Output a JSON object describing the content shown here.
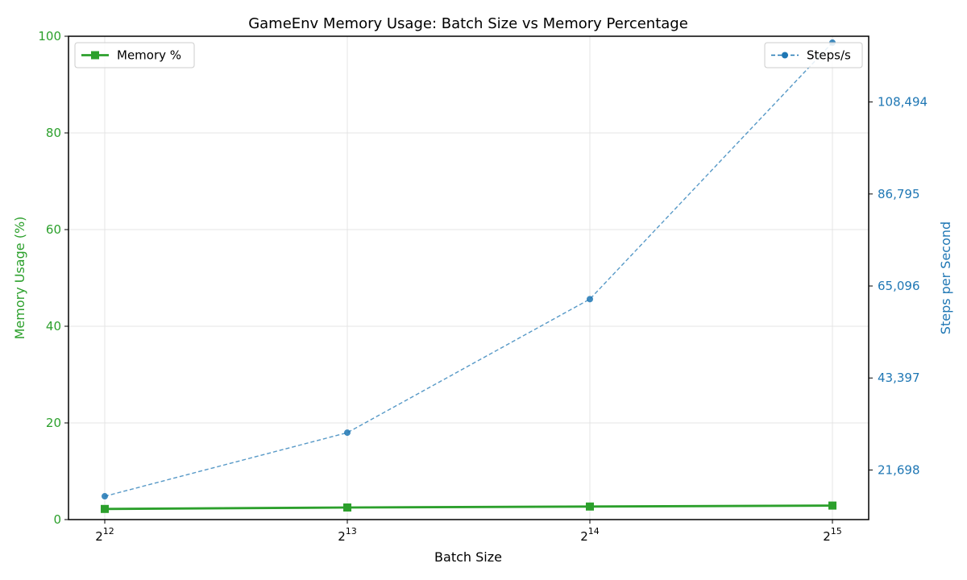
{
  "chart_data": {
    "type": "line",
    "title": "GameEnv Memory Usage: Batch Size vs Memory Percentage",
    "xlabel": "Batch Size",
    "x_scale": "log2",
    "x": [
      4096,
      8192,
      16384,
      32768
    ],
    "x_tick_labels": [
      {
        "base": "2",
        "exp": "12"
      },
      {
        "base": "2",
        "exp": "13"
      },
      {
        "base": "2",
        "exp": "14"
      },
      {
        "base": "2",
        "exp": "15"
      }
    ],
    "y_left": {
      "label": "Memory Usage (%)",
      "range": [
        0,
        100
      ],
      "ticks": [
        0,
        20,
        40,
        60,
        80,
        100
      ],
      "tick_labels": [
        "0",
        "20",
        "40",
        "60",
        "80",
        "100"
      ],
      "color": "#2ca02c"
    },
    "y_right": {
      "label": "Steps per Second",
      "range": [
        10000,
        124000
      ],
      "ticks": [
        21698,
        43397,
        65096,
        86795,
        108494
      ],
      "tick_labels": [
        "21,698",
        "43,397",
        "65,096",
        "86,795",
        "108,494"
      ],
      "color": "#1f77b4"
    },
    "series": [
      {
        "name": "Memory %",
        "axis": "left",
        "color": "#2ca02c",
        "marker": "square",
        "line": "solid",
        "values": [
          2.2,
          2.5,
          2.7,
          2.9
        ]
      },
      {
        "name": "Steps/s",
        "axis": "right",
        "color": "#1f77b4",
        "marker": "circle",
        "line": "dashed",
        "values": [
          15500,
          30500,
          62000,
          122500
        ]
      }
    ],
    "grid": true,
    "legends": {
      "left_axis": "top-left",
      "right_axis": "top-right"
    }
  }
}
